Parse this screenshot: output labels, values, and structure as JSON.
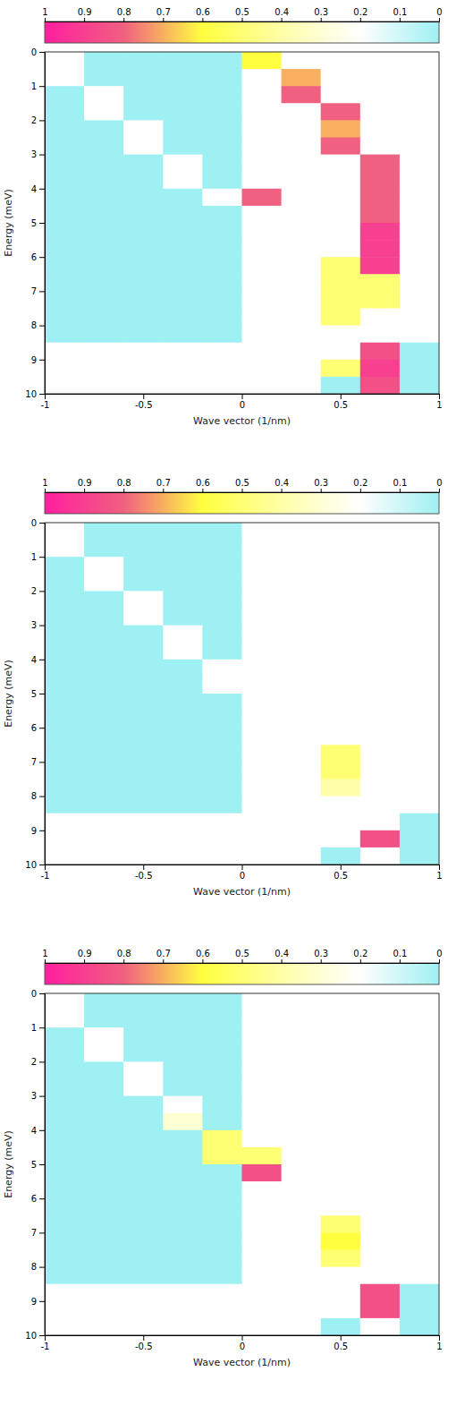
{
  "chart_data": [
    {
      "type": "heatmap",
      "x_label": "Wave vector (1/nm)",
      "y_label": "Energy (meV)",
      "xlim": [
        -1,
        1
      ],
      "ylim": [
        0,
        10
      ],
      "xticks": [
        -1,
        -0.5,
        0,
        0.5,
        1
      ],
      "yticks": [
        0,
        1,
        2,
        3,
        4,
        5,
        6,
        7,
        8,
        9,
        10
      ],
      "x_bins": [
        -1,
        -0.8,
        -0.6,
        -0.4,
        -0.2,
        0,
        0.2,
        0.4,
        0.6,
        0.8,
        1
      ],
      "y_bins": [
        0,
        0.5,
        1,
        1.5,
        2,
        2.5,
        3,
        3.5,
        4,
        4.5,
        5,
        5.5,
        6,
        6.5,
        7,
        7.5,
        8,
        8.5,
        9,
        9.5,
        10
      ],
      "z": [
        [
          0.2,
          0,
          0,
          0,
          0,
          0.6,
          0.2,
          0.2,
          0.2,
          0.2
        ],
        [
          0.2,
          0,
          0,
          0,
          0,
          0.2,
          0.7,
          0.2,
          0.2,
          0.2
        ],
        [
          0,
          0.2,
          0,
          0,
          0,
          0.2,
          0.8,
          0.2,
          0.2,
          0.2
        ],
        [
          0,
          0.2,
          0,
          0,
          0,
          0.2,
          0.2,
          0.8,
          0.2,
          0.2
        ],
        [
          0,
          0,
          0.2,
          0,
          0,
          0.2,
          0.2,
          0.7,
          0.2,
          0.2
        ],
        [
          0,
          0,
          0.2,
          0,
          0,
          0.2,
          0.2,
          0.8,
          0.2,
          0.2
        ],
        [
          0,
          0,
          0,
          0.2,
          0,
          0.2,
          0.2,
          0.2,
          0.8,
          0.2
        ],
        [
          0,
          0,
          0,
          0.2,
          0,
          0.2,
          0.2,
          0.2,
          0.8,
          0.2
        ],
        [
          0,
          0,
          0,
          0,
          0.2,
          0.8,
          0.2,
          0.2,
          0.8,
          0.2
        ],
        [
          0,
          0,
          0,
          0,
          0,
          0.2,
          0.2,
          0.2,
          0.8,
          0.2
        ],
        [
          0,
          0,
          0,
          0,
          0,
          0.2,
          0.2,
          0.2,
          0.9,
          0.2
        ],
        [
          0,
          0,
          0,
          0,
          0,
          0.2,
          0.2,
          0.2,
          0.9,
          0.2
        ],
        [
          0,
          0,
          0,
          0,
          0,
          0.2,
          0.2,
          0.5,
          0.9,
          0.2
        ],
        [
          0,
          0,
          0,
          0,
          0,
          0.2,
          0.2,
          0.5,
          0.5,
          0.2
        ],
        [
          0,
          0,
          0,
          0,
          0,
          0.2,
          0.2,
          0.5,
          0.5,
          0.2
        ],
        [
          0,
          0,
          0,
          0,
          0,
          0.2,
          0.2,
          0.5,
          0.2,
          0.2
        ],
        [
          0,
          0,
          0,
          0,
          0,
          0.2,
          0.2,
          0.2,
          0.2,
          0.2
        ],
        [
          0.2,
          0.2,
          0.2,
          0.2,
          0.2,
          0.2,
          0.2,
          0.2,
          0.85,
          0
        ],
        [
          0.2,
          0.2,
          0.2,
          0.2,
          0.2,
          0.2,
          0.2,
          0.5,
          0.9,
          0
        ],
        [
          0.2,
          0.2,
          0.2,
          0.2,
          0.2,
          0.2,
          0.2,
          0,
          0.85,
          0
        ]
      ],
      "colorbar": {
        "range": [
          0,
          1
        ],
        "ticks": [
          0,
          0.1,
          0.2,
          0.3,
          0.4,
          0.5,
          0.6,
          0.7,
          0.8,
          0.9,
          1
        ]
      }
    },
    {
      "type": "heatmap",
      "x_label": "Wave vector (1/nm)",
      "y_label": "Energy (meV)",
      "xlim": [
        -1,
        1
      ],
      "ylim": [
        0,
        10
      ],
      "xticks": [
        -1,
        -0.5,
        0,
        0.5,
        1
      ],
      "yticks": [
        0,
        1,
        2,
        3,
        4,
        5,
        6,
        7,
        8,
        9,
        10
      ],
      "x_bins": [
        -1,
        -0.8,
        -0.6,
        -0.4,
        -0.2,
        0,
        0.2,
        0.4,
        0.6,
        0.8,
        1
      ],
      "y_bins": [
        0,
        0.5,
        1,
        1.5,
        2,
        2.5,
        3,
        3.5,
        4,
        4.5,
        5,
        5.5,
        6,
        6.5,
        7,
        7.5,
        8,
        8.5,
        9,
        9.5,
        10
      ],
      "z": [
        [
          0.2,
          0,
          0,
          0,
          0,
          0.2,
          0.2,
          0.2,
          0.2,
          0.2
        ],
        [
          0.2,
          0,
          0,
          0,
          0,
          0.2,
          0.2,
          0.2,
          0.2,
          0.2
        ],
        [
          0,
          0.2,
          0,
          0,
          0,
          0.2,
          0.2,
          0.2,
          0.2,
          0.2
        ],
        [
          0,
          0.2,
          0,
          0,
          0,
          0.2,
          0.2,
          0.2,
          0.2,
          0.2
        ],
        [
          0,
          0,
          0.2,
          0,
          0,
          0.2,
          0.2,
          0.2,
          0.2,
          0.2
        ],
        [
          0,
          0,
          0.2,
          0,
          0,
          0.2,
          0.2,
          0.2,
          0.2,
          0.2
        ],
        [
          0,
          0,
          0,
          0.2,
          0,
          0.2,
          0.2,
          0.2,
          0.2,
          0.2
        ],
        [
          0,
          0,
          0,
          0.2,
          0,
          0.2,
          0.2,
          0.2,
          0.2,
          0.2
        ],
        [
          0,
          0,
          0,
          0,
          0.2,
          0.2,
          0.2,
          0.2,
          0.2,
          0.2
        ],
        [
          0,
          0,
          0,
          0,
          0.2,
          0.2,
          0.2,
          0.2,
          0.2,
          0.2
        ],
        [
          0,
          0,
          0,
          0,
          0,
          0.2,
          0.2,
          0.2,
          0.2,
          0.2
        ],
        [
          0,
          0,
          0,
          0,
          0,
          0.2,
          0.2,
          0.2,
          0.2,
          0.2
        ],
        [
          0,
          0,
          0,
          0,
          0,
          0.2,
          0.2,
          0.2,
          0.2,
          0.2
        ],
        [
          0,
          0,
          0,
          0,
          0,
          0.2,
          0.2,
          0.5,
          0.2,
          0.2
        ],
        [
          0,
          0,
          0,
          0,
          0,
          0.2,
          0.2,
          0.5,
          0.2,
          0.2
        ],
        [
          0,
          0,
          0,
          0,
          0,
          0.2,
          0.2,
          0.4,
          0.2,
          0.2
        ],
        [
          0,
          0,
          0,
          0,
          0,
          0.2,
          0.2,
          0.2,
          0.2,
          0.2
        ],
        [
          0.2,
          0.2,
          0.2,
          0.2,
          0.2,
          0.2,
          0.2,
          0.2,
          0.2,
          0
        ],
        [
          0.2,
          0.2,
          0.2,
          0.2,
          0.2,
          0.2,
          0.2,
          0.2,
          0.85,
          0
        ],
        [
          0.2,
          0.2,
          0.2,
          0.2,
          0.2,
          0.2,
          0.2,
          0,
          0.2,
          0
        ]
      ],
      "colorbar": {
        "range": [
          0,
          1
        ],
        "ticks": [
          0,
          0.1,
          0.2,
          0.3,
          0.4,
          0.5,
          0.6,
          0.7,
          0.8,
          0.9,
          1
        ]
      }
    },
    {
      "type": "heatmap",
      "x_label": "Wave vector (1/nm)",
      "y_label": "Energy (meV)",
      "xlim": [
        -1,
        1
      ],
      "ylim": [
        0,
        10
      ],
      "xticks": [
        -1,
        -0.5,
        0,
        0.5,
        1
      ],
      "yticks": [
        0,
        1,
        2,
        3,
        4,
        5,
        6,
        7,
        8,
        9,
        10
      ],
      "x_bins": [
        -1,
        -0.8,
        -0.6,
        -0.4,
        -0.2,
        0,
        0.2,
        0.4,
        0.6,
        0.8,
        1
      ],
      "y_bins": [
        0,
        0.5,
        1,
        1.5,
        2,
        2.5,
        3,
        3.5,
        4,
        4.5,
        5,
        5.5,
        6,
        6.5,
        7,
        7.5,
        8,
        8.5,
        9,
        9.5,
        10
      ],
      "z": [
        [
          0.2,
          0,
          0,
          0,
          0,
          0.2,
          0.2,
          0.2,
          0.2,
          0.2
        ],
        [
          0.2,
          0,
          0,
          0,
          0,
          0.2,
          0.2,
          0.2,
          0.2,
          0.2
        ],
        [
          0,
          0.2,
          0,
          0,
          0,
          0.2,
          0.2,
          0.2,
          0.2,
          0.2
        ],
        [
          0,
          0.2,
          0,
          0,
          0,
          0.2,
          0.2,
          0.2,
          0.2,
          0.2
        ],
        [
          0,
          0,
          0.2,
          0,
          0,
          0.2,
          0.2,
          0.2,
          0.2,
          0.2
        ],
        [
          0,
          0,
          0.2,
          0,
          0,
          0.2,
          0.2,
          0.2,
          0.2,
          0.2
        ],
        [
          0,
          0,
          0,
          0.2,
          0,
          0.2,
          0.2,
          0.2,
          0.2,
          0.2
        ],
        [
          0,
          0,
          0,
          0.3,
          0,
          0.2,
          0.2,
          0.2,
          0.2,
          0.2
        ],
        [
          0,
          0,
          0,
          0,
          0.5,
          0.2,
          0.2,
          0.2,
          0.2,
          0.2
        ],
        [
          0,
          0,
          0,
          0,
          0.5,
          0.5,
          0.2,
          0.2,
          0.2,
          0.2
        ],
        [
          0,
          0,
          0,
          0,
          0,
          0.85,
          0.2,
          0.2,
          0.2,
          0.2
        ],
        [
          0,
          0,
          0,
          0,
          0,
          0.2,
          0.2,
          0.2,
          0.2,
          0.2
        ],
        [
          0,
          0,
          0,
          0,
          0,
          0.2,
          0.2,
          0.2,
          0.2,
          0.2
        ],
        [
          0,
          0,
          0,
          0,
          0,
          0.2,
          0.2,
          0.5,
          0.2,
          0.2
        ],
        [
          0,
          0,
          0,
          0,
          0,
          0.2,
          0.2,
          0.6,
          0.2,
          0.2
        ],
        [
          0,
          0,
          0,
          0,
          0,
          0.2,
          0.2,
          0.5,
          0.2,
          0.2
        ],
        [
          0,
          0,
          0,
          0,
          0,
          0.2,
          0.2,
          0.2,
          0.2,
          0.2
        ],
        [
          0.2,
          0.2,
          0.2,
          0.2,
          0.2,
          0.2,
          0.2,
          0.2,
          0.85,
          0
        ],
        [
          0.2,
          0.2,
          0.2,
          0.2,
          0.2,
          0.2,
          0.2,
          0.2,
          0.85,
          0
        ],
        [
          0.2,
          0.2,
          0.2,
          0.2,
          0.2,
          0.2,
          0.2,
          0,
          0.2,
          0
        ]
      ],
      "colorbar": {
        "range": [
          0,
          1
        ],
        "ticks": [
          0,
          0.1,
          0.2,
          0.3,
          0.4,
          0.5,
          0.6,
          0.7,
          0.8,
          0.9,
          1
        ]
      }
    }
  ]
}
